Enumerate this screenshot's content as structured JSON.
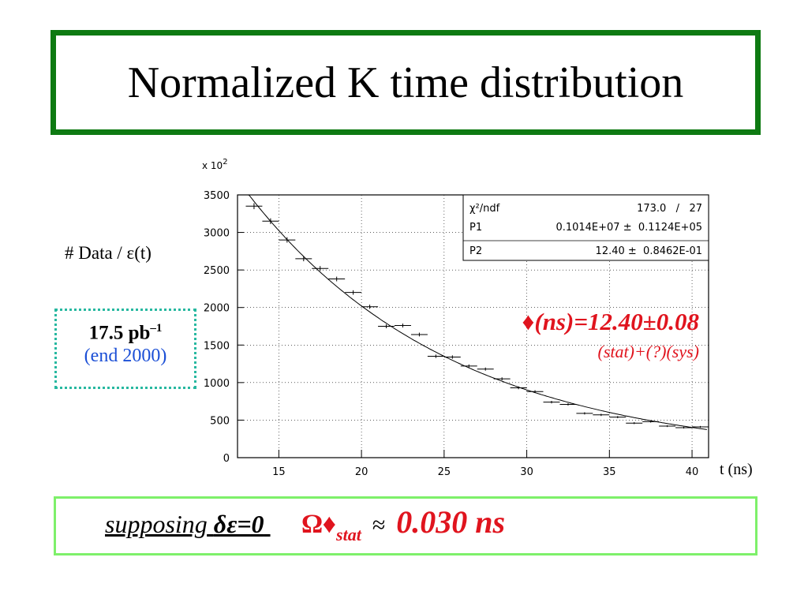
{
  "title": "Normalized K time distribution",
  "y_axis_label": "# Data / ε(t)",
  "x_axis_label": "t (ns)",
  "y_scale_label": "x 10",
  "y_scale_exp": "2",
  "luminosity": {
    "value": "17.5 pb",
    "exponent": "–1",
    "note": "(end 2000)"
  },
  "result": {
    "main": "♦(ns)=12.40±0.08",
    "sub": "(stat)+(?)(sys)"
  },
  "bottom": {
    "supposing": "supposing",
    "condition": "δε=0",
    "symbol": "Ω♦",
    "subscript": "stat",
    "approx_icon": "≈",
    "value": "0.030 ns"
  },
  "fit_box": {
    "rows": [
      {
        "label": "χ²/ndf",
        "value": "173.0   /   27"
      },
      {
        "label": "P1",
        "value": "0.1014E+07 ±  0.1124E+05"
      },
      {
        "label": "P2",
        "value": "12.40 ±  0.8462E-01"
      }
    ]
  },
  "colors": {
    "title_border": "#0e7a12",
    "bottom_border": "#7ef06a",
    "lumi_border": "#27b8a0",
    "result": "#e0141e",
    "lumi_note": "#1b4fd6"
  },
  "chart_data": {
    "type": "scatter",
    "xlim": [
      12.5,
      41.0
    ],
    "ylim": [
      0,
      3500
    ],
    "xticks": [
      15,
      20,
      25,
      30,
      35,
      40
    ],
    "yticks": [
      0,
      500,
      1000,
      1500,
      2000,
      2500,
      3000,
      3500
    ],
    "grid": true,
    "bin_width": 1.0,
    "series": [
      {
        "values_x": [
          13.5,
          14.5,
          15.5,
          16.5,
          17.5,
          18.5,
          19.5,
          20.5,
          21.5,
          22.5,
          23.5,
          24.5,
          25.5,
          26.5,
          27.5,
          28.5,
          29.5,
          30.5,
          31.5,
          32.5,
          33.5,
          34.5,
          35.5,
          36.5,
          37.5,
          38.5,
          39.5,
          40.5
        ],
        "values_y": [
          3350,
          3150,
          2900,
          2650,
          2520,
          2380,
          2200,
          2010,
          1750,
          1760,
          1640,
          1350,
          1340,
          1220,
          1180,
          1050,
          930,
          880,
          740,
          710,
          590,
          570,
          540,
          460,
          480,
          420,
          400,
          410
        ],
        "y_err": [
          40,
          38,
          36,
          34,
          32,
          31,
          30,
          28,
          26,
          26,
          25,
          23,
          23,
          22,
          21,
          20,
          19,
          18,
          17,
          16,
          15,
          15,
          14,
          13,
          13,
          12,
          12,
          12
        ]
      }
    ],
    "fit": {
      "function": "P1*exp(-t/P2)",
      "P1": 1014000,
      "P2": 12.4
    }
  }
}
